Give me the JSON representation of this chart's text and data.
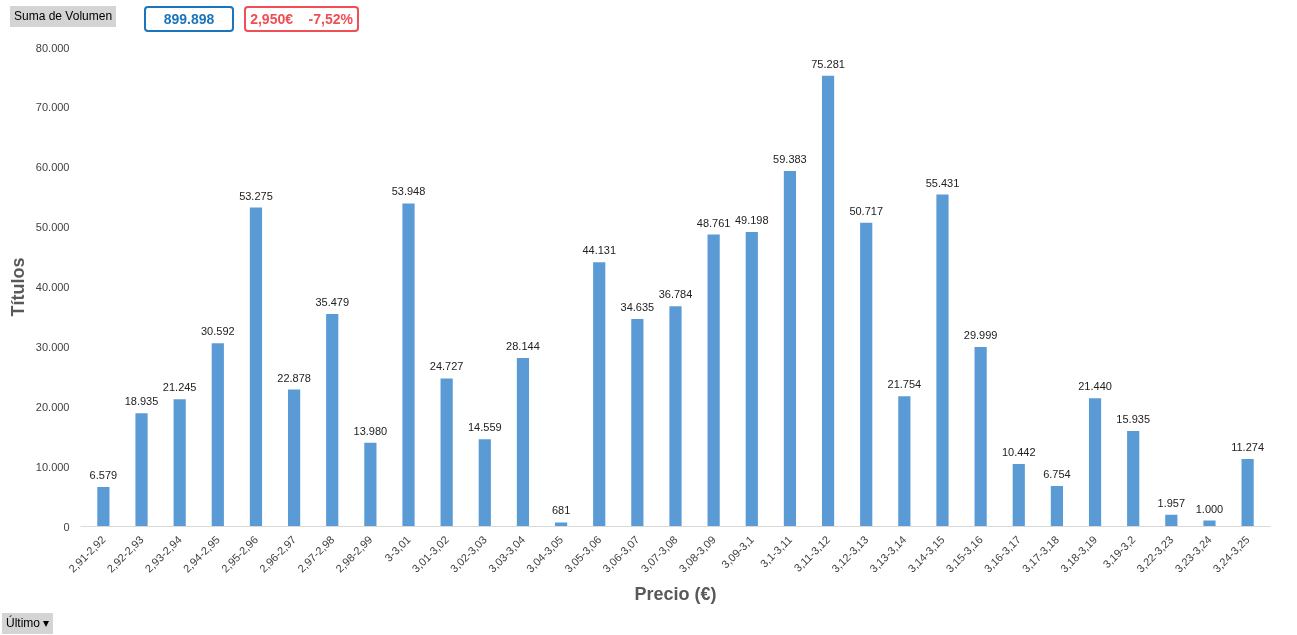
{
  "chart_data": {
    "type": "bar",
    "xlabel": "Precio (€)",
    "ylabel": "Títulos",
    "categories": [
      "2,91-2,92",
      "2,92-2,93",
      "2,93-2,94",
      "2,94-2,95",
      "2,95-2,96",
      "2,96-2,97",
      "2,97-2,98",
      "2,98-2,99",
      "3-3,01",
      "3,01-3,02",
      "3,02-3,03",
      "3,03-3,04",
      "3,04-3,05",
      "3,05-3,06",
      "3,06-3,07",
      "3,07-3,08",
      "3,08-3,09",
      "3,09-3,1",
      "3,1-3,11",
      "3,11-3,12",
      "3,12-3,13",
      "3,13-3,14",
      "3,14-3,15",
      "3,15-3,16",
      "3,16-3,17",
      "3,17-3,18",
      "3,18-3,19",
      "3,19-3,2",
      "3,22-3,23",
      "3,23-3,24",
      "3,24-3,25"
    ],
    "values": [
      6579,
      18935,
      21245,
      30592,
      53275,
      22878,
      35479,
      13980,
      53948,
      24727,
      14559,
      28144,
      681,
      44131,
      34635,
      36784,
      48761,
      49198,
      59383,
      75281,
      50717,
      21754,
      55431,
      29999,
      10442,
      6754,
      21440,
      15935,
      1957,
      1000,
      11274
    ],
    "value_labels": [
      "6.579",
      "18.935",
      "21.245",
      "30.592",
      "53.275",
      "22.878",
      "35.479",
      "13.980",
      "53.948",
      "24.727",
      "14.559",
      "28.144",
      "681",
      "44.131",
      "34.635",
      "36.784",
      "48.761",
      "49.198",
      "59.383",
      "75.281",
      "50.717",
      "21.754",
      "55.431",
      "29.999",
      "10.442",
      "6.754",
      "21.440",
      "15.935",
      "1.957",
      "1.000",
      "11.274"
    ],
    "color": "#5b9bd5",
    "ylim": [
      0,
      80000
    ],
    "yticks": [
      {
        "value": 0,
        "label": "0"
      },
      {
        "value": 10000,
        "label": "10.000"
      },
      {
        "value": 20000,
        "label": "20.000"
      },
      {
        "value": 30000,
        "label": "30.000"
      },
      {
        "value": 40000,
        "label": "40.000"
      },
      {
        "value": 50000,
        "label": "50.000"
      },
      {
        "value": 60000,
        "label": "60.000"
      },
      {
        "value": 70000,
        "label": "70.000"
      },
      {
        "value": 80000,
        "label": "80.000"
      }
    ],
    "grid": false,
    "annotations": [
      "Suma de Volumen",
      "899.898",
      "2,950€    -7,52%",
      "Último ▾"
    ]
  }
}
